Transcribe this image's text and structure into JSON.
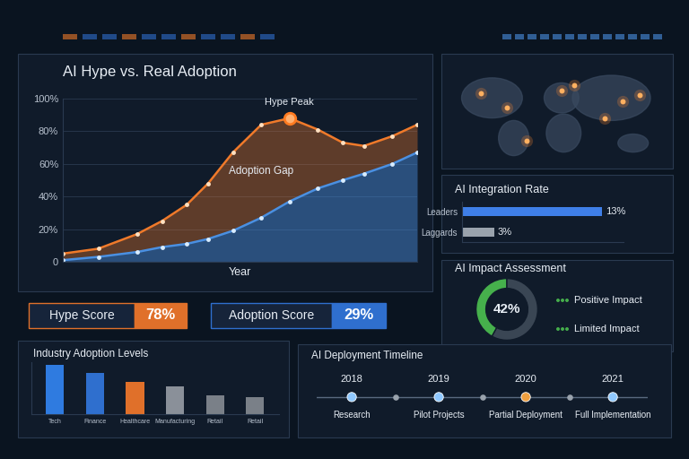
{
  "chart_data": [
    {
      "type": "area",
      "title": "AI Hype vs. Real Adoption",
      "x_label": "Year",
      "x": [
        0,
        10,
        21,
        28,
        35,
        41,
        48,
        56,
        64,
        72,
        79,
        85,
        93,
        100
      ],
      "series": [
        {
          "color": "#f07a2a",
          "values": [
            5,
            8,
            17,
            25,
            35,
            48,
            67,
            84,
            88,
            81,
            73,
            71,
            77,
            84
          ]
        },
        {
          "color": "#4a90e2",
          "values": [
            1,
            3,
            6,
            9,
            11,
            14,
            19,
            27,
            37,
            45,
            50,
            54,
            60,
            67
          ]
        }
      ],
      "xlim": [
        0,
        100
      ],
      "ylim": [
        0,
        100
      ],
      "yticks": [
        0,
        {
          "value": 20,
          "label": "20%"
        },
        {
          "value": 40,
          "label": "40%"
        },
        {
          "value": 60,
          "label": "60%"
        },
        {
          "value": 80,
          "label": "80%"
        },
        {
          "value": 100,
          "label": "100%"
        }
      ],
      "grid": true,
      "tick_labels": "y",
      "marker": "o",
      "annotations": [
        "Hype Peak",
        "Adoption Gap"
      ]
    },
    {
      "type": "bar",
      "orientation": "horizontal",
      "title": "AI Integration Rate",
      "categories": [
        "Leaders",
        "Laggards"
      ],
      "values": [
        13,
        3
      ],
      "value_labels": [
        "13%",
        "3%"
      ],
      "colors": [
        "#3f7fe8",
        "#9aa3ad"
      ],
      "xlim": [
        0,
        15
      ],
      "data_labels": true,
      "tick_labels": "y"
    },
    {
      "type": "pie",
      "title": "AI Impact Assessment",
      "categories": [
        "Positive Impact",
        "Limited Impact"
      ],
      "values": [
        42,
        58
      ],
      "colors": [
        "#46b04c",
        "#3a4654"
      ],
      "annotations": [
        "42%"
      ]
    },
    {
      "type": "bar",
      "title": "Industry Adoption Levels",
      "categories": [
        "Tech",
        "Finance",
        "Healthcare",
        "Manufacturing",
        "Retail",
        "Retail"
      ],
      "values": [
        48,
        40,
        31,
        27,
        18,
        16
      ],
      "colors": [
        "#2f7be0",
        "#2f6fce",
        "#e0702a",
        "#8a9099",
        "#7a8088",
        "#7a8088"
      ],
      "ylim": [
        0,
        50
      ],
      "tick_labels": "x"
    },
    {
      "type": "timeline",
      "title": "AI Deployment Timeline",
      "x": [
        2018,
        2019,
        2020,
        2021
      ],
      "categories": [
        "Research",
        "Pilot Projects",
        "Partial Deployment",
        "Full Implementation"
      ],
      "colors": [
        "#8fc8ff",
        "#8fc8ff",
        "#f0a040",
        "#8fc8ff"
      ],
      "xlim": [
        2017.6,
        2021.4
      ],
      "data_labels": true,
      "tick_labels": false
    }
  ],
  "kpis": [
    {
      "label": "Hype Score",
      "value": "78%",
      "color": "#e0702a"
    },
    {
      "label": "Adoption Score",
      "value": "29%",
      "color": "#2f6fce"
    }
  ]
}
